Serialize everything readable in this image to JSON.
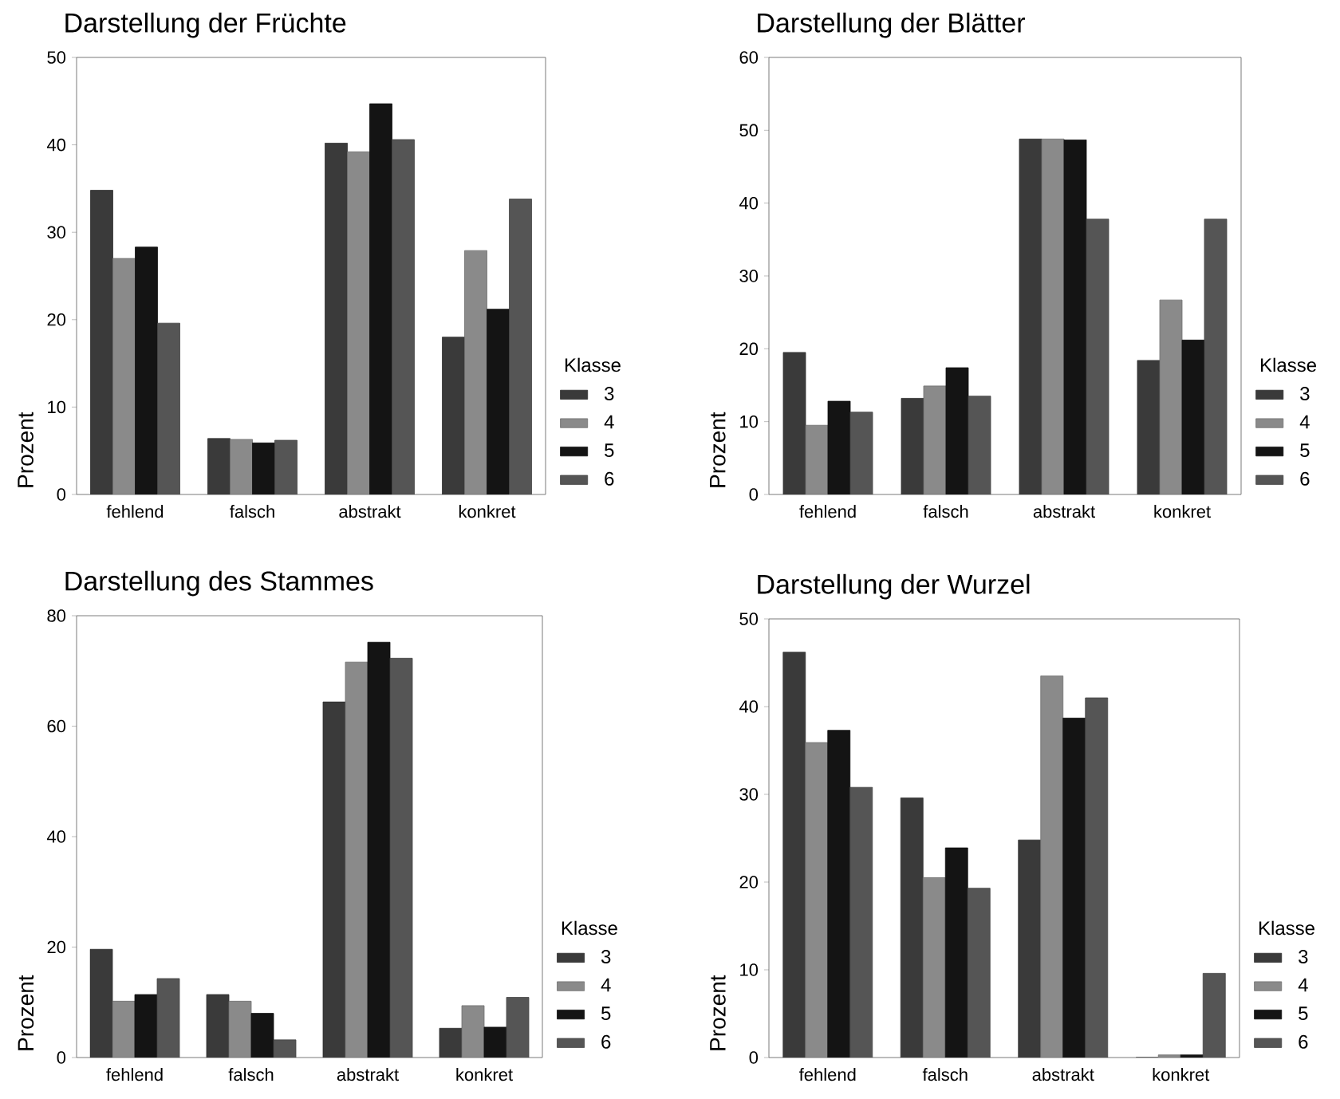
{
  "chart_data": [
    {
      "type": "bar",
      "title": "Darstellung der Früchte",
      "ylabel": "Prozent",
      "legend_title": "Klasse",
      "legend": "right",
      "categories": [
        "fehlend",
        "falsch",
        "abstrakt",
        "konkret"
      ],
      "ylim": [
        0,
        50
      ],
      "yticks": [
        0,
        10,
        20,
        30,
        40,
        50
      ],
      "series": [
        {
          "name": "3",
          "color": "#3a3a3a",
          "values": [
            34.8,
            6.4,
            40.2,
            18.0
          ]
        },
        {
          "name": "4",
          "color": "#8a8a8a",
          "values": [
            27.0,
            6.3,
            39.2,
            27.9
          ]
        },
        {
          "name": "5",
          "color": "#141414",
          "values": [
            28.3,
            5.9,
            44.7,
            21.2
          ]
        },
        {
          "name": "6",
          "color": "#555555",
          "values": [
            19.6,
            6.2,
            40.6,
            33.8
          ]
        }
      ]
    },
    {
      "type": "bar",
      "title": "Darstellung der Blätter",
      "ylabel": "Prozent",
      "legend_title": "Klasse",
      "legend": "right",
      "categories": [
        "fehlend",
        "falsch",
        "abstrakt",
        "konkret"
      ],
      "ylim": [
        0,
        60
      ],
      "yticks": [
        0,
        10,
        20,
        30,
        40,
        50,
        60
      ],
      "series": [
        {
          "name": "3",
          "color": "#3a3a3a",
          "values": [
            19.5,
            13.2,
            48.8,
            18.4
          ]
        },
        {
          "name": "4",
          "color": "#8a8a8a",
          "values": [
            9.5,
            14.9,
            48.8,
            26.7
          ]
        },
        {
          "name": "5",
          "color": "#141414",
          "values": [
            12.8,
            17.4,
            48.7,
            21.2
          ]
        },
        {
          "name": "6",
          "color": "#555555",
          "values": [
            11.3,
            13.5,
            37.8,
            37.8
          ]
        }
      ]
    },
    {
      "type": "bar",
      "title": "Darstellung des Stammes",
      "ylabel": "Prozent",
      "legend_title": "Klasse",
      "legend": "right",
      "categories": [
        "fehlend",
        "falsch",
        "abstrakt",
        "konkret"
      ],
      "ylim": [
        0,
        80
      ],
      "yticks": [
        0,
        20,
        40,
        60,
        80
      ],
      "series": [
        {
          "name": "3",
          "color": "#3a3a3a",
          "values": [
            19.6,
            11.4,
            64.4,
            5.3
          ]
        },
        {
          "name": "4",
          "color": "#8a8a8a",
          "values": [
            10.2,
            10.2,
            71.6,
            9.4
          ]
        },
        {
          "name": "5",
          "color": "#141414",
          "values": [
            11.4,
            8.0,
            75.2,
            5.5
          ]
        },
        {
          "name": "6",
          "color": "#555555",
          "values": [
            14.3,
            3.2,
            72.3,
            10.9
          ]
        }
      ]
    },
    {
      "type": "bar",
      "title": "Darstellung der Wurzel",
      "ylabel": "Prozent",
      "legend_title": "Klasse",
      "legend": "right",
      "categories": [
        "fehlend",
        "falsch",
        "abstrakt",
        "konkret"
      ],
      "ylim": [
        0,
        50
      ],
      "yticks": [
        0,
        10,
        20,
        30,
        40,
        50
      ],
      "series": [
        {
          "name": "3",
          "color": "#3a3a3a",
          "values": [
            46.2,
            29.6,
            24.8,
            0
          ]
        },
        {
          "name": "4",
          "color": "#8a8a8a",
          "values": [
            35.9,
            20.5,
            43.5,
            0.3
          ]
        },
        {
          "name": "5",
          "color": "#141414",
          "values": [
            37.3,
            23.9,
            38.7,
            0.3
          ]
        },
        {
          "name": "6",
          "color": "#555555",
          "values": [
            30.8,
            19.3,
            41.0,
            9.6
          ]
        }
      ]
    }
  ]
}
